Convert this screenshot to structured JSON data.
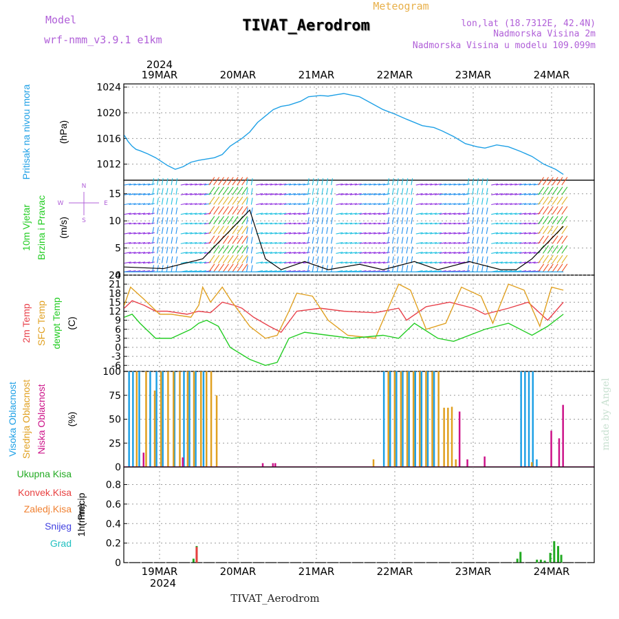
{
  "header": {
    "model_label": "Model",
    "model_name": "wrf-nmm_v3.9.1  e1km",
    "title": "TIVAT_Aerodrom",
    "product": "Meteogram",
    "location_lines": [
      "lon,lat (18.7312E, 42.4N)",
      "Nadmorska Visina 2m",
      "Nadmorska Visina u modelu 109.099m"
    ],
    "credit": "made by Angel",
    "footer_title": "TIVAT_Aerodrom"
  },
  "colors": {
    "model": "#b05fd8",
    "title": "#000000",
    "product": "#e8b04a",
    "location": "#b05fd8",
    "pressure": "#1ea0e6",
    "t2m": "#e8404a",
    "tsfc": "#e0a020",
    "dewpt": "#22cc22",
    "cloud_high": "#1ea0e6",
    "cloud_mid": "#e0a020",
    "cloud_low": "#cc1188",
    "precip_total": "#22aa22",
    "precip_conv": "#e84040",
    "precip_frz": "#f08030",
    "precip_snow": "#4040e0",
    "precip_graupel": "#20c0c0",
    "credit": "#c8e0d0",
    "wind_bands": [
      "#9030e0",
      "#2090f0",
      "#20c0e0",
      "#30c030",
      "#e0b020",
      "#f05020"
    ]
  },
  "time_axis": {
    "year": "2024",
    "top_labels": [
      "19MAR",
      "20MAR",
      "21MAR",
      "22MAR",
      "23MAR",
      "24MAR"
    ],
    "bottom_labels": [
      "19MAR",
      "20MAR",
      "21MAR",
      "22MAR",
      "23MAR",
      "24MAR"
    ]
  },
  "chart_data": [
    {
      "type": "line",
      "ylabel_lines": [
        "Pritisak na nivou mora"
      ],
      "unit": "(hPa)",
      "ylim": [
        1009.5,
        1024.5
      ],
      "yticks": [
        1012,
        1016,
        1020,
        1024
      ],
      "grid": true,
      "series": [
        {
          "color_key": "pressure",
          "x": [
            0,
            0.05,
            0.1,
            0.15,
            0.2,
            0.3,
            0.4,
            0.55,
            0.65,
            0.75,
            0.85,
            0.95,
            1.05,
            1.15,
            1.25,
            1.35,
            1.5,
            1.6,
            1.7,
            1.8,
            1.9,
            2,
            2.1,
            2.25,
            2.35,
            2.5,
            2.6,
            2.7,
            2.8,
            3,
            3.15,
            3.3,
            3.45,
            3.6,
            3.8,
            3.95,
            4.05,
            4.2,
            4.35,
            4.5,
            4.6,
            4.75,
            4.9,
            5.05,
            5.2,
            5.35,
            5.5,
            5.6
          ],
          "y": [
            1016.5,
            1015.5,
            1014.8,
            1014.3,
            1014.1,
            1013.6,
            1013,
            1011.8,
            1011.2,
            1011.6,
            1012.3,
            1012.6,
            1012.8,
            1013,
            1013.5,
            1014.8,
            1016,
            1017,
            1018.5,
            1019.5,
            1020.5,
            1021,
            1021.2,
            1021.8,
            1022.5,
            1022.7,
            1022.6,
            1022.8,
            1023,
            1022.5,
            1021.5,
            1020.5,
            1019.8,
            1019,
            1018,
            1017.7,
            1017.2,
            1016.3,
            1015.2,
            1014.7,
            1014.5,
            1015,
            1014.7,
            1014,
            1013.2,
            1012,
            1011.2,
            1010.4
          ]
        }
      ]
    },
    {
      "type": "wind",
      "ylabel_lines": [
        "10m Vjetar",
        "Brzina i Pravac"
      ],
      "unit": "(m/s)",
      "compass": [
        "N",
        "E",
        "S",
        "W"
      ],
      "ylim": [
        0,
        17.5
      ],
      "yticks": [
        0,
        5,
        10,
        15
      ],
      "levels": [
        0.6,
        2.2,
        4,
        5.8,
        7.6,
        9.4,
        11.2,
        13,
        14.8,
        16.6
      ],
      "grid": true,
      "speed_series": [
        {
          "color_key": "black",
          "x": [
            0,
            0.5,
            1,
            1.2,
            1.4,
            1.6,
            1.8,
            2,
            2.3,
            2.6,
            3,
            3.3,
            3.7,
            4,
            4.4,
            4.8,
            5,
            5.2,
            5.4,
            5.6
          ],
          "y": [
            1.5,
            1.2,
            3,
            6,
            9,
            12,
            3,
            1,
            2.5,
            1,
            2,
            1,
            2.5,
            1,
            2.5,
            1,
            1,
            3,
            6,
            9
          ]
        },
        {
          "color_key": "pressure",
          "x": [
            0,
            1,
            2,
            3,
            4,
            5,
            5.6
          ],
          "y": [
            0.6,
            0.6,
            0.6,
            0.6,
            0.6,
            0.6,
            0.6
          ]
        }
      ]
    },
    {
      "type": "line",
      "ylabel_lines": [
        "2m Temp",
        "SFC Temp",
        "dewpt Temp"
      ],
      "unit": "(C)",
      "ylim": [
        -8,
        24
      ],
      "yticks": [
        -6,
        -3,
        0,
        3,
        6,
        9,
        12,
        15,
        18,
        21,
        24
      ],
      "grid": true,
      "series": [
        {
          "name": "2m Temp",
          "color_key": "t2m",
          "x": [
            0,
            0.1,
            0.25,
            0.4,
            0.55,
            0.8,
            0.95,
            1.1,
            1.25,
            1.4,
            1.5,
            1.65,
            1.85,
            2,
            2.2,
            2.5,
            2.8,
            3.2,
            3.5,
            3.6,
            3.85,
            4.15,
            4.45,
            4.6,
            4.9,
            5.15,
            5.4,
            5.6
          ],
          "y": [
            13,
            15.5,
            14,
            12,
            12,
            11,
            12,
            11.5,
            15,
            14,
            13,
            10,
            7,
            5,
            12,
            13,
            12,
            11.5,
            13,
            9,
            13.5,
            15,
            13,
            11,
            13,
            15,
            9,
            15
          ]
        },
        {
          "name": "SFC Temp",
          "color_key": "tsfc",
          "x": [
            0,
            0.08,
            0.25,
            0.45,
            0.6,
            0.85,
            0.95,
            1,
            1.1,
            1.25,
            1.35,
            1.6,
            1.8,
            1.95,
            2.1,
            2.2,
            2.4,
            2.6,
            2.85,
            3.2,
            3.5,
            3.65,
            3.85,
            4.1,
            4.3,
            4.55,
            4.7,
            4.9,
            5.1,
            5.3,
            5.45,
            5.6
          ],
          "y": [
            14,
            20,
            16,
            11,
            11,
            10,
            14,
            20,
            15,
            20,
            16,
            7,
            3,
            4,
            12,
            18,
            17,
            9,
            4,
            3,
            21,
            19,
            6,
            8,
            20,
            17,
            8,
            21,
            19,
            7,
            20,
            19
          ]
        },
        {
          "name": "dewpt Temp",
          "color_key": "dewpt",
          "x": [
            0,
            0.1,
            0.2,
            0.4,
            0.6,
            0.85,
            0.95,
            1.05,
            1.2,
            1.35,
            1.6,
            1.8,
            1.95,
            2.1,
            2.3,
            2.6,
            2.9,
            3.3,
            3.5,
            3.7,
            4,
            4.2,
            4.6,
            4.9,
            5.2,
            5.4,
            5.6
          ],
          "y": [
            10,
            11,
            8,
            3,
            3,
            6,
            8,
            9,
            7,
            0,
            -4,
            -6,
            -5,
            3,
            5,
            4,
            3,
            4,
            3,
            8,
            3,
            2,
            6,
            8,
            4,
            7,
            11
          ]
        }
      ]
    },
    {
      "type": "bar",
      "ylabel_lines": [
        "Visoka Oblacnost",
        "Srednja Oblacnost",
        "Niska Oblacnost"
      ],
      "unit": "(%)",
      "ylim": [
        0,
        100
      ],
      "yticks": [
        0,
        25,
        50,
        75,
        100
      ],
      "grid": true,
      "bars": [
        {
          "color_key": "cloud_high",
          "x": [
            0.05,
            0.1,
            0.18,
            0.32,
            0.4,
            0.48,
            0.63,
            0.75,
            0.82,
            0.9,
            1.0,
            3.3,
            3.38,
            3.46,
            3.54,
            3.62,
            3.7,
            3.78,
            3.86,
            3.94,
            5.05,
            5.1,
            5.15,
            5.2,
            5.25
          ],
          "values": [
            100,
            100,
            100,
            100,
            100,
            100,
            100,
            100,
            100,
            100,
            100,
            100,
            100,
            100,
            100,
            100,
            100,
            100,
            100,
            100,
            100,
            100,
            100,
            100,
            8
          ]
        },
        {
          "color_key": "cloud_mid",
          "x": [
            0.13,
            0.25,
            0.36,
            0.44,
            0.53,
            0.6,
            0.68,
            0.78,
            0.86,
            0.95,
            1.02,
            1.08,
            1.15,
            3.15,
            3.34,
            3.42,
            3.5,
            3.58,
            3.66,
            3.74,
            3.82,
            3.9,
            3.98,
            4.05,
            4.1,
            4.15,
            4.2,
            5.17
          ],
          "values": [
            100,
            100,
            80,
            100,
            100,
            100,
            100,
            100,
            100,
            100,
            100,
            100,
            75,
            8,
            100,
            100,
            100,
            100,
            100,
            100,
            100,
            100,
            100,
            62,
            62,
            63,
            8,
            5
          ]
        },
        {
          "color_key": "cloud_low",
          "x": [
            0.2,
            0.7,
            1.72,
            1.85,
            1.88,
            4.23,
            4.33,
            4.55,
            5.4,
            5.5,
            5.55
          ],
          "values": [
            15,
            10,
            4,
            4,
            4,
            58,
            8,
            11,
            38,
            30,
            65
          ]
        }
      ]
    },
    {
      "type": "bar",
      "ylabel_lines": [
        "1hr Precip"
      ],
      "unit": "(mm)",
      "ylim": [
        0,
        0.98
      ],
      "yticks": [
        0,
        0.2,
        0.4,
        0.6,
        0.8
      ],
      "grid": true,
      "legend": [
        "Ukupna Kisa",
        "Konvek.Kisa",
        "Zaledj.Kisa",
        "Snijeg",
        "Grad"
      ],
      "legend_color_keys": [
        "precip_total",
        "precip_conv",
        "precip_frz",
        "precip_snow",
        "precip_graupel"
      ],
      "bars": [
        {
          "color_key": "precip_total",
          "x": [
            0.87,
            0.91,
            5.0,
            5.04,
            5.25,
            5.3,
            5.35,
            5.42,
            5.47,
            5.52,
            5.56
          ],
          "values": [
            0.04,
            0.17,
            0.04,
            0.11,
            0.03,
            0.03,
            0.02,
            0.1,
            0.22,
            0.17,
            0.08
          ]
        },
        {
          "color_key": "precip_conv",
          "x": [
            0.91
          ],
          "values": [
            0.16
          ]
        }
      ]
    }
  ]
}
